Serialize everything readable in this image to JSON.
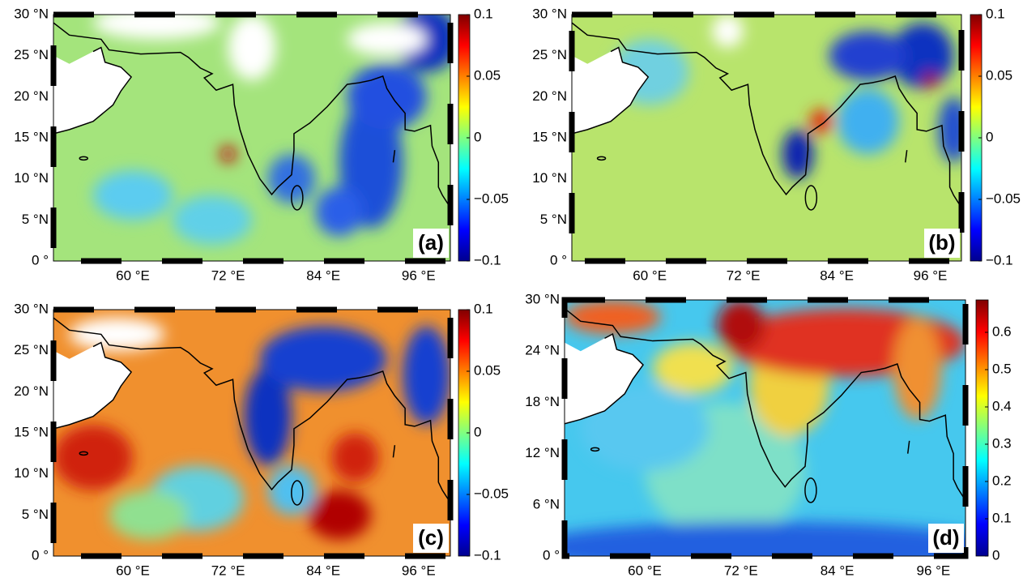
{
  "panels": [
    {
      "label": "(a)",
      "lat_labels": [
        "0 °",
        "5 °N",
        "10 °N",
        "15 °N",
        "20 °N",
        "25 °N",
        "30 °N"
      ],
      "lon_labels": [
        "60 °E",
        "72 °E",
        "84 °E",
        "96 °E"
      ],
      "colorbar_labels": [
        "−0.1",
        "−0.05",
        "0",
        "0.05",
        "0.1"
      ]
    },
    {
      "label": "(b)",
      "lat_labels": [
        "0 °",
        "5 °N",
        "10 °N",
        "15 °N",
        "20 °N",
        "25 °N",
        "30 °N"
      ],
      "lon_labels": [
        "60 °E",
        "72 °E",
        "84 °E",
        "96 °E"
      ],
      "colorbar_labels": [
        "−0.1",
        "−0.05",
        "0",
        "0.05",
        "0.1"
      ]
    },
    {
      "label": "(c)",
      "lat_labels": [
        "0 °",
        "5 °N",
        "10 °N",
        "15 °N",
        "20 °N",
        "25 °N",
        "30 °N"
      ],
      "lon_labels": [
        "60 °E",
        "72 °E",
        "84 °E",
        "96 °E"
      ],
      "colorbar_labels": [
        "−0.1",
        "−0.05",
        "0",
        "0.05",
        "0.1"
      ]
    },
    {
      "label": "(d)",
      "lat_labels": [
        "0 °",
        "6 °N",
        "12 °N",
        "18 °N",
        "24 °N",
        "30 °N"
      ],
      "lon_labels": [
        "60 °E",
        "72 °E",
        "84 °E",
        "96 °E"
      ],
      "colorbar_labels": [
        "0",
        "0.1",
        "0.2",
        "0.3",
        "0.4",
        "0.5",
        "0.6"
      ]
    }
  ]
}
